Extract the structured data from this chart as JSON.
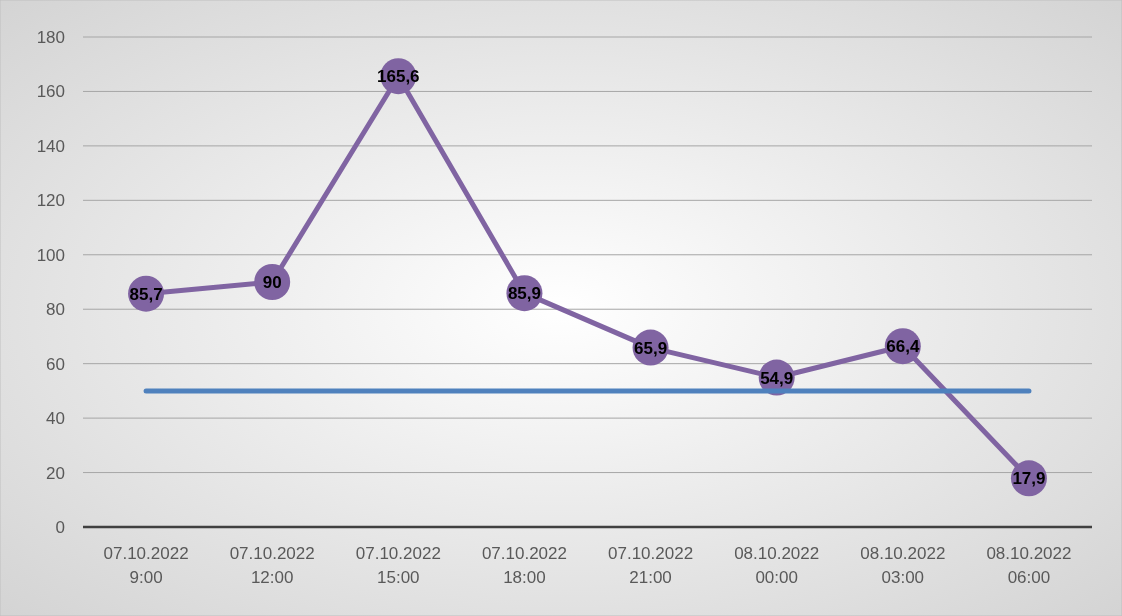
{
  "chart_data": {
    "type": "line",
    "categories": [
      "07.10.2022\n9:00",
      "07.10.2022\n12:00",
      "07.10.2022\n15:00",
      "07.10.2022\n18:00",
      "07.10.2022\n21:00",
      "08.10.2022\n00:00",
      "08.10.2022\n03:00",
      "08.10.2022\n06:00"
    ],
    "series": [
      {
        "color": "#8064a2",
        "values": [
          85.7,
          90,
          165.6,
          85.9,
          65.9,
          54.9,
          66.4,
          17.9
        ],
        "marker": "circle",
        "value_labels": [
          "85,7",
          "90",
          "165,6",
          "85,9",
          "65,9",
          "54,9",
          "66,4",
          "17,9"
        ]
      },
      {
        "color": "#4f81bd",
        "values": [
          50,
          50,
          50,
          50,
          50,
          50,
          50,
          50
        ],
        "marker": "none"
      }
    ],
    "ylim": [
      0,
      180
    ],
    "yticks": [
      0,
      20,
      40,
      60,
      80,
      100,
      120,
      140,
      160,
      180
    ],
    "grid": "y"
  }
}
